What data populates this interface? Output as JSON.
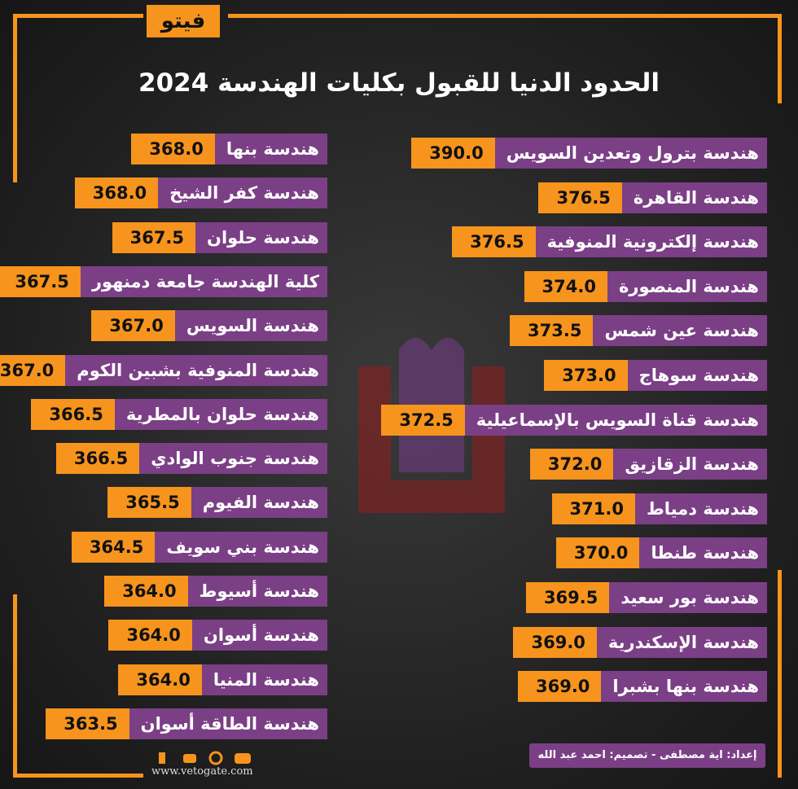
{
  "header": {
    "logo": "فيتو",
    "title": "الحدود الدنيا للقبول بكليات الهندسة 2024"
  },
  "right_column": [
    {
      "name": "هندسة بترول وتعدين السويس",
      "score": "390.0"
    },
    {
      "name": "هندسة القاهرة",
      "score": "376.5"
    },
    {
      "name": "هندسة إلكترونية المنوفية",
      "score": "376.5"
    },
    {
      "name": "هندسة المنصورة",
      "score": "374.0"
    },
    {
      "name": "هندسة عين شمس",
      "score": "373.5"
    },
    {
      "name": "هندسة سوهاج",
      "score": "373.0"
    },
    {
      "name": "هندسة قناة السويس بالإسماعيلية",
      "score": "372.5"
    },
    {
      "name": "هندسة الزقازيق",
      "score": "372.0"
    },
    {
      "name": "هندسة دمياط",
      "score": "371.0"
    },
    {
      "name": "هندسة طنطا",
      "score": "370.0"
    },
    {
      "name": "هندسة بور سعيد",
      "score": "369.5"
    },
    {
      "name": "هندسة الإسكندرية",
      "score": "369.0"
    },
    {
      "name": "هندسة بنها بشبرا",
      "score": "369.0"
    }
  ],
  "left_column": [
    {
      "name": "هندسة بنها",
      "score": "368.0"
    },
    {
      "name": "هندسة كفر الشيخ",
      "score": "368.0"
    },
    {
      "name": "هندسة حلوان",
      "score": "367.5"
    },
    {
      "name": "كلية الهندسة جامعة دمنهور",
      "score": "367.5"
    },
    {
      "name": "هندسة السويس",
      "score": "367.0"
    },
    {
      "name": "هندسة المنوفية بشبين الكوم",
      "score": "367.0"
    },
    {
      "name": "هندسة حلوان بالمطرية",
      "score": "366.5"
    },
    {
      "name": "هندسة جنوب الوادي",
      "score": "366.5"
    },
    {
      "name": "هندسة الفيوم",
      "score": "365.5"
    },
    {
      "name": "هندسة بني سويف",
      "score": "364.5"
    },
    {
      "name": "هندسة أسيوط",
      "score": "364.0"
    },
    {
      "name": "هندسة أسوان",
      "score": "364.0"
    },
    {
      "name": "هندسة المنيا",
      "score": "364.0"
    },
    {
      "name": "هندسة الطاقة أسوان",
      "score": "363.5"
    }
  ],
  "footer": {
    "credits": "إعداد: اية مصطفى  -  تصميم: احمد عبد الله",
    "website": "www.vetogate.com"
  }
}
